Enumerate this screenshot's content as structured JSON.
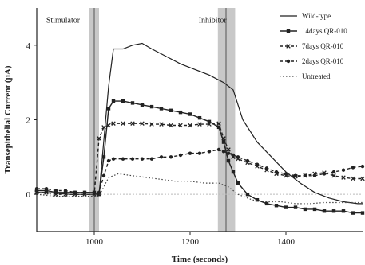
{
  "chart_data": {
    "type": "line",
    "xlabel": "Time (seconds)",
    "ylabel": "Transepithelial Current (µA)",
    "xlim": [
      880,
      1560
    ],
    "ylim": [
      -1.0,
      5.0
    ],
    "xticks": [
      1000,
      1200,
      1400
    ],
    "yticks": [
      0,
      2,
      4
    ],
    "grid": false,
    "legend_position": "top-right",
    "annotations": [
      {
        "text": "Stimulator",
        "x": 935,
        "y": 4.6
      },
      {
        "text": "Inhibitor",
        "x": 1247,
        "y": 4.6
      }
    ],
    "shaded_bands": [
      {
        "label": "stimulator",
        "x": [
          990,
          1010
        ]
      },
      {
        "label": "inhibitor",
        "x": [
          1258,
          1294
        ]
      }
    ],
    "vertical_lines": [
      1000,
      1275
    ],
    "baseline_y": 0,
    "series": [
      {
        "name": "Wild-type",
        "style": "solid",
        "marker": "none",
        "color": "#222222",
        "x": [
          880,
          900,
          950,
          1000,
          1010,
          1030,
          1040,
          1060,
          1080,
          1100,
          1120,
          1150,
          1180,
          1210,
          1240,
          1270,
          1290,
          1310,
          1340,
          1370,
          1400,
          1430,
          1460,
          1490,
          1520,
          1550,
          1560
        ],
        "values": [
          0.05,
          0.05,
          0.0,
          0.0,
          0.0,
          2.9,
          3.9,
          3.9,
          4.0,
          4.05,
          3.9,
          3.7,
          3.5,
          3.35,
          3.2,
          3.0,
          2.8,
          2.0,
          1.4,
          1.0,
          0.6,
          0.3,
          0.05,
          -0.1,
          -0.2,
          -0.25,
          -0.25
        ]
      },
      {
        "name": "14days QR-010",
        "style": "solid",
        "marker": "square",
        "color": "#222222",
        "x": [
          880,
          900,
          920,
          940,
          960,
          980,
          1000,
          1010,
          1020,
          1030,
          1040,
          1060,
          1080,
          1100,
          1120,
          1140,
          1160,
          1180,
          1200,
          1220,
          1240,
          1260,
          1270,
          1280,
          1290,
          1300,
          1320,
          1340,
          1360,
          1380,
          1400,
          1420,
          1440,
          1460,
          1480,
          1500,
          1520,
          1540,
          1560
        ],
        "values": [
          0.1,
          0.1,
          0.05,
          0.05,
          0.05,
          0.05,
          0.05,
          0.0,
          1.0,
          2.3,
          2.5,
          2.5,
          2.45,
          2.4,
          2.35,
          2.3,
          2.25,
          2.2,
          2.15,
          2.05,
          1.95,
          1.8,
          1.4,
          0.9,
          0.6,
          0.3,
          0.0,
          -0.15,
          -0.25,
          -0.3,
          -0.35,
          -0.35,
          -0.4,
          -0.4,
          -0.45,
          -0.45,
          -0.45,
          -0.5,
          -0.5
        ]
      },
      {
        "name": "7days QR-010",
        "style": "dashed",
        "marker": "x",
        "color": "#222222",
        "x": [
          880,
          900,
          920,
          940,
          960,
          980,
          1000,
          1010,
          1020,
          1030,
          1040,
          1060,
          1080,
          1100,
          1120,
          1140,
          1160,
          1180,
          1200,
          1220,
          1240,
          1260,
          1270,
          1280,
          1290,
          1300,
          1320,
          1340,
          1360,
          1380,
          1400,
          1420,
          1440,
          1460,
          1480,
          1500,
          1520,
          1540,
          1560
        ],
        "values": [
          0.05,
          0.05,
          0.0,
          0.0,
          0.0,
          0.0,
          0.0,
          1.5,
          1.8,
          1.85,
          1.9,
          1.9,
          1.9,
          1.9,
          1.88,
          1.88,
          1.85,
          1.85,
          1.85,
          1.88,
          1.88,
          1.9,
          1.5,
          1.2,
          1.0,
          0.95,
          0.85,
          0.75,
          0.65,
          0.55,
          0.5,
          0.48,
          0.5,
          0.55,
          0.58,
          0.5,
          0.45,
          0.42,
          0.42
        ]
      },
      {
        "name": "2days QR-010",
        "style": "dashed",
        "marker": "circle",
        "color": "#222222",
        "x": [
          880,
          900,
          920,
          940,
          960,
          980,
          1000,
          1010,
          1020,
          1030,
          1040,
          1060,
          1080,
          1100,
          1120,
          1140,
          1160,
          1180,
          1200,
          1220,
          1240,
          1260,
          1270,
          1280,
          1290,
          1300,
          1320,
          1340,
          1360,
          1380,
          1400,
          1420,
          1440,
          1460,
          1480,
          1500,
          1520,
          1540,
          1560
        ],
        "values": [
          0.15,
          0.15,
          0.1,
          0.1,
          0.05,
          0.05,
          0.05,
          0.05,
          0.5,
          0.9,
          0.95,
          0.95,
          0.95,
          0.95,
          0.95,
          1.0,
          1.0,
          1.05,
          1.1,
          1.1,
          1.15,
          1.2,
          1.15,
          1.1,
          1.05,
          1.0,
          0.9,
          0.8,
          0.7,
          0.6,
          0.55,
          0.5,
          0.5,
          0.5,
          0.55,
          0.6,
          0.65,
          0.72,
          0.75
        ]
      },
      {
        "name": "Untreated",
        "style": "dotted",
        "marker": "none",
        "color": "#444444",
        "x": [
          880,
          920,
          960,
          1000,
          1010,
          1030,
          1050,
          1080,
          1110,
          1140,
          1170,
          1200,
          1230,
          1260,
          1280,
          1300,
          1330,
          1360,
          1390,
          1420,
          1450,
          1480,
          1510,
          1540,
          1560
        ],
        "values": [
          0.0,
          -0.05,
          -0.05,
          -0.05,
          -0.05,
          0.45,
          0.55,
          0.5,
          0.45,
          0.4,
          0.35,
          0.35,
          0.3,
          0.3,
          0.2,
          0.0,
          -0.15,
          -0.2,
          -0.2,
          -0.25,
          -0.25,
          -0.22,
          -0.22,
          -0.22,
          -0.22
        ]
      }
    ]
  }
}
